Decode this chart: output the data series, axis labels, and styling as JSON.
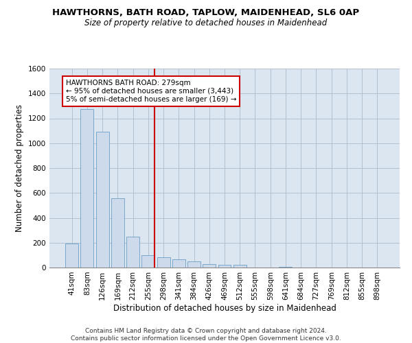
{
  "title_line1": "HAWTHORNS, BATH ROAD, TAPLOW, MAIDENHEAD, SL6 0AP",
  "title_line2": "Size of property relative to detached houses in Maidenhead",
  "xlabel": "Distribution of detached houses by size in Maidenhead",
  "ylabel": "Number of detached properties",
  "footnote": "Contains HM Land Registry data © Crown copyright and database right 2024.\nContains public sector information licensed under the Open Government Licence v3.0.",
  "bin_labels": [
    "41sqm",
    "83sqm",
    "126sqm",
    "169sqm",
    "212sqm",
    "255sqm",
    "298sqm",
    "341sqm",
    "384sqm",
    "426sqm",
    "469sqm",
    "512sqm",
    "555sqm",
    "598sqm",
    "641sqm",
    "684sqm",
    "727sqm",
    "769sqm",
    "812sqm",
    "855sqm",
    "898sqm"
  ],
  "bar_heights": [
    195,
    1275,
    1095,
    555,
    248,
    100,
    85,
    65,
    50,
    28,
    20,
    20,
    0,
    0,
    8,
    0,
    0,
    0,
    0,
    0,
    0
  ],
  "bar_color": "#cddaeb",
  "bar_edge_color": "#6a9ec5",
  "grid_color": "#aabbcc",
  "bg_color": "#dce6f0",
  "ylim": [
    0,
    1600
  ],
  "yticks": [
    0,
    200,
    400,
    600,
    800,
    1000,
    1200,
    1400,
    1600
  ],
  "annotation_text_line1": "HAWTHORNS BATH ROAD: 279sqm",
  "annotation_text_line2": "← 95% of detached houses are smaller (3,443)",
  "annotation_text_line3": "5% of semi-detached houses are larger (169) →",
  "red_line_color": "#cc0000",
  "title_fontsize": 9.5,
  "subtitle_fontsize": 8.5,
  "tick_fontsize": 7.5,
  "annotation_fontsize": 7.5,
  "xlabel_fontsize": 8.5,
  "ylabel_fontsize": 8.5,
  "footnote_fontsize": 6.5
}
